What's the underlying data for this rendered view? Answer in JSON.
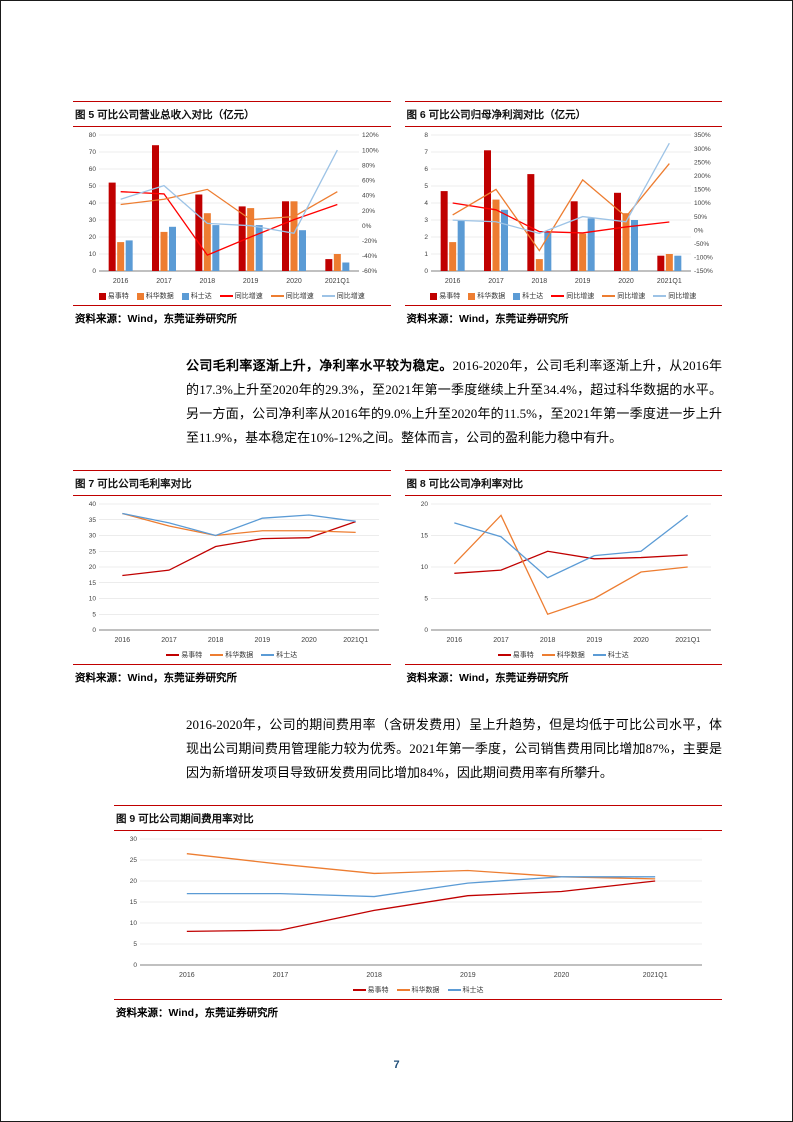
{
  "page": {
    "number": "7"
  },
  "source_label": "资料来源：Wind，东莞证券研究所",
  "colors": {
    "rule_red": "#C00000",
    "yishite_red": "#C00000",
    "kehua_orange": "#ED7D31",
    "keshida_blue": "#5B9BD5",
    "growth_red": "#FF0000",
    "growth_orange": "#ED7D31",
    "growth_lightblue": "#9DC3E6",
    "page_number_navy": "#1F4E79"
  },
  "paragraphs": [
    {
      "bold": "公司毛利率逐渐上升，净利率水平较为稳定。",
      "text": "2016-2020年，公司毛利率逐渐上升，从2016年的17.3%上升至2020年的29.3%，至2021年第一季度继续上升至34.4%，超过科华数据的水平。另一方面，公司净利率从2016年的9.0%上升至2020年的11.5%，至2021年第一季度进一步上升至11.9%，基本稳定在10%-12%之间。整体而言，公司的盈利能力稳中有升。"
    },
    {
      "bold": "",
      "text": "2016-2020年，公司的期间费用率（含研发费用）呈上升趋势，但是均低于可比公司水平，体现出公司期间费用管理能力较为优秀。2021年第一季度，公司销售费用同比增加87%，主要是因为新增研发项目导致研发费用同比增加84%，因此期间费用率有所攀升。"
    }
  ],
  "chart_data": [
    {
      "id": "fig5",
      "type": "bar+line",
      "title": "图 5 可比公司营业总收入对比（亿元）",
      "categories": [
        "2016",
        "2017",
        "2018",
        "2019",
        "2020",
        "2021Q1"
      ],
      "bar_series": [
        {
          "name": "易事特",
          "color": "#C00000",
          "values": [
            52,
            74,
            45,
            38,
            41,
            7
          ]
        },
        {
          "name": "科华数据",
          "color": "#ED7D31",
          "values": [
            17,
            23,
            34,
            37,
            41,
            10
          ]
        },
        {
          "name": "科士达",
          "color": "#5B9BD5",
          "values": [
            18,
            26,
            27,
            27,
            24,
            5
          ]
        }
      ],
      "line_series": [
        {
          "name": "同比增速",
          "color": "#FF0000",
          "values": [
            45,
            42,
            -39,
            -15,
            8,
            28
          ]
        },
        {
          "name": "同比增速",
          "color": "#ED7D31",
          "values": [
            28,
            35,
            48,
            8,
            12,
            45
          ]
        },
        {
          "name": "同比增速",
          "color": "#9DC3E6",
          "values": [
            35,
            53,
            3,
            0,
            -10,
            100
          ]
        }
      ],
      "left_axis": {
        "min": 0,
        "max": 80,
        "step": 10
      },
      "right_axis": {
        "min": -60,
        "max": 120,
        "step": 20
      },
      "legend_position": "bottom",
      "grid": true
    },
    {
      "id": "fig6",
      "type": "bar+line",
      "title": "图 6 可比公司归母净利润对比（亿元）",
      "categories": [
        "2016",
        "2017",
        "2018",
        "2019",
        "2020",
        "2021Q1"
      ],
      "bar_series": [
        {
          "name": "易事特",
          "color": "#C00000",
          "values": [
            4.7,
            7.1,
            5.7,
            4.1,
            4.6,
            0.9
          ]
        },
        {
          "name": "科华数据",
          "color": "#ED7D31",
          "values": [
            1.7,
            4.2,
            0.7,
            2.2,
            3.4,
            1.0
          ]
        },
        {
          "name": "科士达",
          "color": "#5B9BD5",
          "values": [
            3.0,
            3.6,
            2.3,
            3.1,
            3.0,
            0.9
          ]
        }
      ],
      "line_series": [
        {
          "name": "同比增速",
          "color": "#FF0000",
          "values": [
            100,
            75,
            -5,
            -10,
            12,
            30
          ]
        },
        {
          "name": "同比增速",
          "color": "#ED7D31",
          "values": [
            56,
            150,
            -75,
            185,
            50,
            245
          ]
        },
        {
          "name": "同比增速",
          "color": "#9DC3E6",
          "values": [
            37,
            31,
            -12,
            50,
            31,
            320
          ]
        }
      ],
      "left_axis": {
        "min": 0,
        "max": 8,
        "step": 1
      },
      "right_axis": {
        "min": -150,
        "max": 350,
        "step": 50
      },
      "legend_position": "bottom",
      "grid": true
    },
    {
      "id": "fig7",
      "type": "line",
      "title": "图 7 可比公司毛利率对比",
      "categories": [
        "2016",
        "2017",
        "2018",
        "2019",
        "2020",
        "2021Q1"
      ],
      "series": [
        {
          "name": "易事特",
          "color": "#C00000",
          "values": [
            17.3,
            19,
            26.5,
            29,
            29.3,
            34.4
          ]
        },
        {
          "name": "科华数据",
          "color": "#ED7D31",
          "values": [
            37,
            33,
            30,
            31.5,
            31.5,
            31
          ]
        },
        {
          "name": "科士达",
          "color": "#5B9BD5",
          "values": [
            37,
            34,
            30,
            35.5,
            36.5,
            34.5
          ]
        }
      ],
      "left_axis": {
        "min": 0,
        "max": 40,
        "step": 5
      },
      "legend_position": "bottom",
      "grid": true
    },
    {
      "id": "fig8",
      "type": "line",
      "title": "图 8 可比公司净利率对比",
      "categories": [
        "2016",
        "2017",
        "2018",
        "2019",
        "2020",
        "2021Q1"
      ],
      "series": [
        {
          "name": "易事特",
          "color": "#C00000",
          "values": [
            9.0,
            9.5,
            12.5,
            11.3,
            11.5,
            11.9
          ]
        },
        {
          "name": "科华数据",
          "color": "#ED7D31",
          "values": [
            10.5,
            18.2,
            2.5,
            5,
            9.2,
            10
          ]
        },
        {
          "name": "科士达",
          "color": "#5B9BD5",
          "values": [
            17,
            14.8,
            8.3,
            11.8,
            12.5,
            18.2
          ]
        }
      ],
      "left_axis": {
        "min": 0,
        "max": 20,
        "step": 5
      },
      "legend_position": "bottom",
      "grid": true
    },
    {
      "id": "fig9",
      "type": "line",
      "title": "图 9 可比公司期间费用率对比",
      "categories": [
        "2016",
        "2017",
        "2018",
        "2019",
        "2020",
        "2021Q1"
      ],
      "series": [
        {
          "name": "易事特",
          "color": "#C00000",
          "values": [
            8,
            8.3,
            13,
            16.5,
            17.5,
            20
          ]
        },
        {
          "name": "科华数据",
          "color": "#ED7D31",
          "values": [
            26.5,
            24,
            21.8,
            22.5,
            21,
            20.5
          ]
        },
        {
          "name": "科士达",
          "color": "#5B9BD5",
          "values": [
            17,
            17,
            16.3,
            19.5,
            21,
            21
          ]
        }
      ],
      "left_axis": {
        "min": 0,
        "max": 30,
        "step": 5
      },
      "legend_position": "bottom",
      "grid": true
    }
  ]
}
